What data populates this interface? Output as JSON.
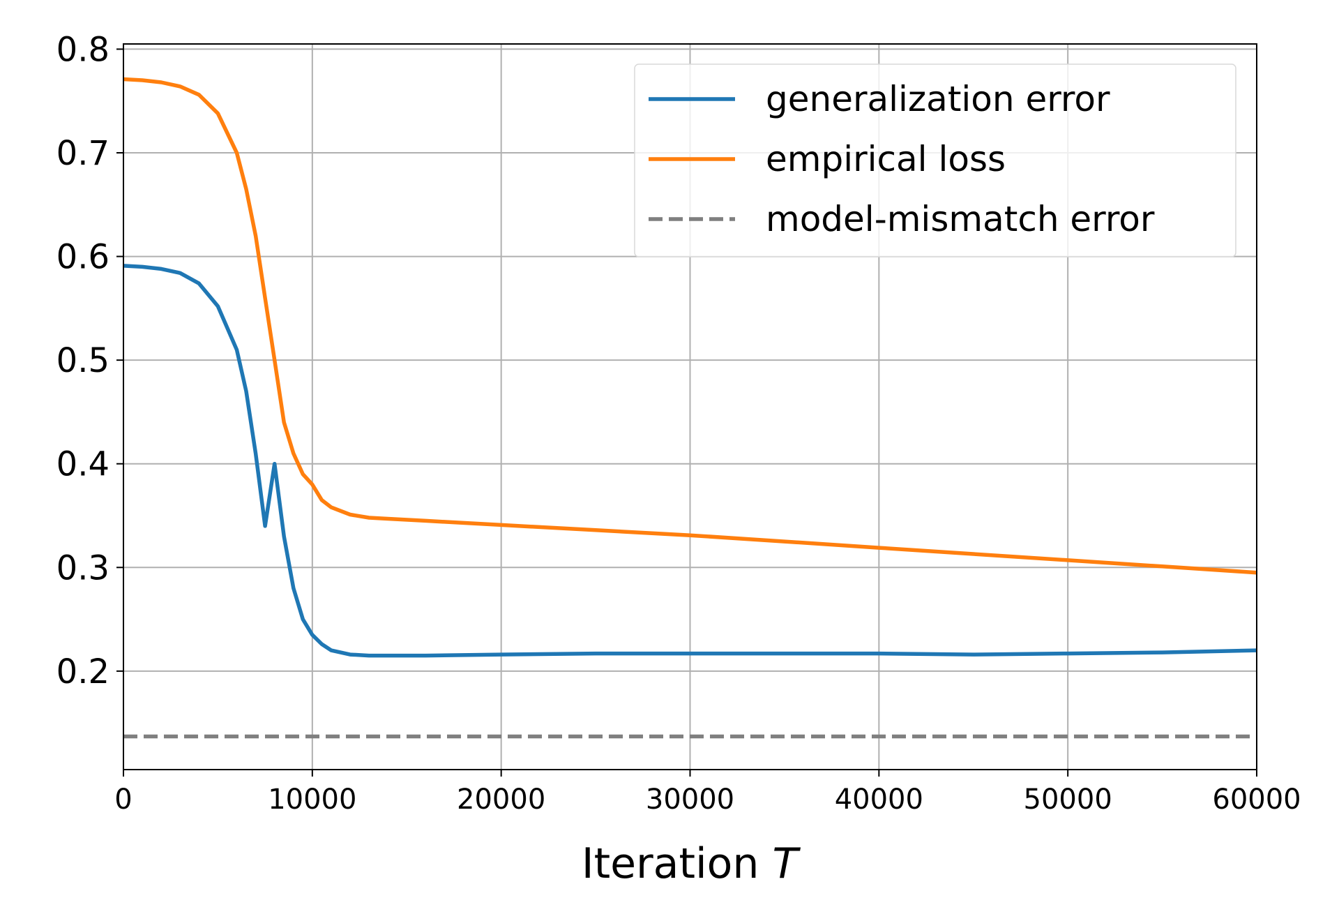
{
  "chart_data": {
    "type": "line",
    "xlabel": "Iteration ",
    "xlabel_var": "T",
    "ylabel": "",
    "xlim": [
      0,
      60000
    ],
    "ylim": [
      0.105,
      0.805
    ],
    "xticks": [
      0,
      10000,
      20000,
      30000,
      40000,
      50000,
      60000
    ],
    "xtick_labels": [
      "0",
      "10000",
      "20000",
      "30000",
      "40000",
      "50000",
      "60000"
    ],
    "yticks": [
      0.2,
      0.3,
      0.4,
      0.5,
      0.6,
      0.7,
      0.8
    ],
    "ytick_labels": [
      "0.2",
      "0.3",
      "0.4",
      "0.5",
      "0.6",
      "0.7",
      "0.8"
    ],
    "grid": true,
    "legend_position": "top-right",
    "series": [
      {
        "name": "generalization error",
        "color": "#1f77b4",
        "style": "solid",
        "x": [
          0,
          1000,
          2000,
          3000,
          4000,
          5000,
          6000,
          6500,
          7000,
          7500,
          8000,
          8500,
          9000,
          9500,
          10000,
          10500,
          11000,
          12000,
          13000,
          14000,
          16000,
          20000,
          25000,
          30000,
          35000,
          40000,
          45000,
          50000,
          55000,
          60000
        ],
        "y": [
          0.591,
          0.59,
          0.588,
          0.584,
          0.574,
          0.552,
          0.51,
          0.47,
          0.41,
          0.34,
          0.4,
          0.33,
          0.28,
          0.25,
          0.235,
          0.226,
          0.22,
          0.216,
          0.215,
          0.215,
          0.215,
          0.216,
          0.217,
          0.217,
          0.217,
          0.217,
          0.216,
          0.217,
          0.218,
          0.22
        ]
      },
      {
        "name": "empirical loss",
        "color": "#ff7f0e",
        "style": "solid",
        "x": [
          0,
          1000,
          2000,
          3000,
          4000,
          5000,
          6000,
          6500,
          7000,
          7500,
          8000,
          8500,
          9000,
          9500,
          10000,
          10500,
          11000,
          12000,
          13000,
          14000,
          16000,
          20000,
          25000,
          30000,
          35000,
          40000,
          45000,
          50000,
          55000,
          60000
        ],
        "y": [
          0.771,
          0.77,
          0.768,
          0.764,
          0.756,
          0.738,
          0.7,
          0.665,
          0.62,
          0.56,
          0.5,
          0.44,
          0.41,
          0.39,
          0.38,
          0.365,
          0.358,
          0.351,
          0.348,
          0.347,
          0.345,
          0.341,
          0.336,
          0.331,
          0.325,
          0.319,
          0.313,
          0.307,
          0.301,
          0.295
        ]
      },
      {
        "name": "model-mismatch error",
        "color": "#7f7f7f",
        "style": "dashed",
        "x": [
          0,
          60000
        ],
        "y": [
          0.137,
          0.137
        ]
      }
    ]
  }
}
